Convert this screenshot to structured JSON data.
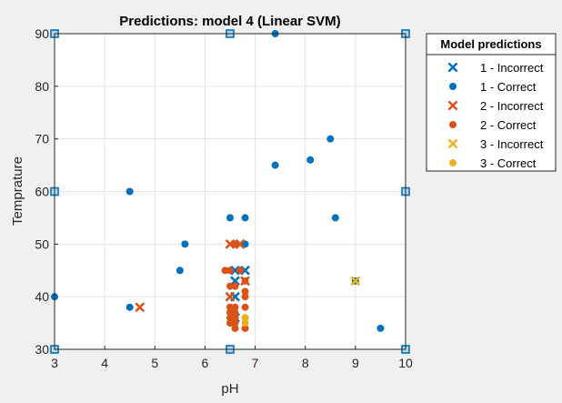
{
  "chart_data": {
    "type": "scatter",
    "title": "Predictions: model 4 (Linear SVM)",
    "xlabel": "pH",
    "ylabel": "Temprature",
    "xlim": [
      3,
      10
    ],
    "ylim": [
      30,
      90
    ],
    "xticks": [
      3,
      4,
      5,
      6,
      7,
      8,
      9,
      10
    ],
    "yticks": [
      30,
      40,
      50,
      60,
      70,
      80,
      90
    ],
    "grid": true,
    "legend": {
      "title": "Model predictions",
      "placement": "outside-right-top",
      "entries": [
        {
          "label": "1 - Incorrect",
          "marker": "x",
          "color": "#0072BD"
        },
        {
          "label": "1 - Correct",
          "marker": "dot",
          "color": "#0072BD"
        },
        {
          "label": "2 - Incorrect",
          "marker": "x",
          "color": "#D95319"
        },
        {
          "label": "2 - Correct",
          "marker": "dot",
          "color": "#D95319"
        },
        {
          "label": "3 - Incorrect",
          "marker": "x",
          "color": "#EDB120"
        },
        {
          "label": "3 - Correct",
          "marker": "dot",
          "color": "#EDB120"
        }
      ]
    },
    "support_vectors": {
      "marker": "square",
      "color": "#0072BD",
      "points": [
        [
          3,
          90
        ],
        [
          6.5,
          90
        ],
        [
          10,
          90
        ],
        [
          3,
          60
        ],
        [
          10,
          60
        ],
        [
          3,
          30
        ],
        [
          6.5,
          30
        ],
        [
          10,
          30
        ]
      ]
    },
    "series": [
      {
        "class": "1",
        "outcome": "correct",
        "marker": "dot",
        "color": "#0072BD",
        "points": [
          [
            7.4,
            90
          ],
          [
            8.5,
            70
          ],
          [
            7.4,
            65
          ],
          [
            8.1,
            66
          ],
          [
            4.5,
            60
          ],
          [
            6.5,
            55
          ],
          [
            6.8,
            55
          ],
          [
            8.6,
            55
          ],
          [
            5.6,
            50
          ],
          [
            6.8,
            50
          ],
          [
            5.5,
            45
          ],
          [
            3,
            40
          ],
          [
            4.5,
            38
          ],
          [
            9,
            43
          ],
          [
            9.5,
            34
          ]
        ]
      },
      {
        "class": "1",
        "outcome": "incorrect",
        "marker": "x",
        "color": "#0072BD",
        "points": [
          [
            6.6,
            45
          ],
          [
            6.8,
            45
          ],
          [
            6.6,
            43
          ],
          [
            6.6,
            40
          ],
          [
            6.6,
            36
          ],
          [
            6.7,
            50
          ]
        ]
      },
      {
        "class": "2",
        "outcome": "correct",
        "marker": "dot",
        "color": "#D95319",
        "points": [
          [
            6.4,
            45
          ],
          [
            6.5,
            45
          ],
          [
            6.5,
            42
          ],
          [
            6.6,
            42
          ],
          [
            6.8,
            41
          ],
          [
            6.8,
            40
          ],
          [
            6.5,
            38
          ],
          [
            6.6,
            38
          ],
          [
            6.8,
            38
          ],
          [
            6.5,
            37
          ],
          [
            6.6,
            37
          ],
          [
            6.5,
            36
          ],
          [
            6.6,
            36
          ],
          [
            6.5,
            35
          ],
          [
            6.6,
            35
          ],
          [
            6.6,
            34
          ],
          [
            6.8,
            34
          ],
          [
            6.8,
            36
          ],
          [
            6.6,
            50
          ],
          [
            6.7,
            45
          ],
          [
            6.8,
            43
          ]
        ]
      },
      {
        "class": "2",
        "outcome": "incorrect",
        "marker": "x",
        "color": "#D95319",
        "points": [
          [
            6.5,
            50
          ],
          [
            6.7,
            50
          ],
          [
            6.5,
            40
          ],
          [
            4.7,
            38
          ],
          [
            6.8,
            43
          ]
        ]
      },
      {
        "class": "3",
        "outcome": "correct",
        "marker": "dot",
        "color": "#EDB120",
        "points": [
          [
            6.8,
            36
          ],
          [
            6.8,
            35
          ]
        ]
      },
      {
        "class": "3",
        "outcome": "incorrect",
        "marker": "x",
        "color": "#EDB120",
        "points": [
          [
            9,
            43
          ]
        ]
      }
    ]
  }
}
